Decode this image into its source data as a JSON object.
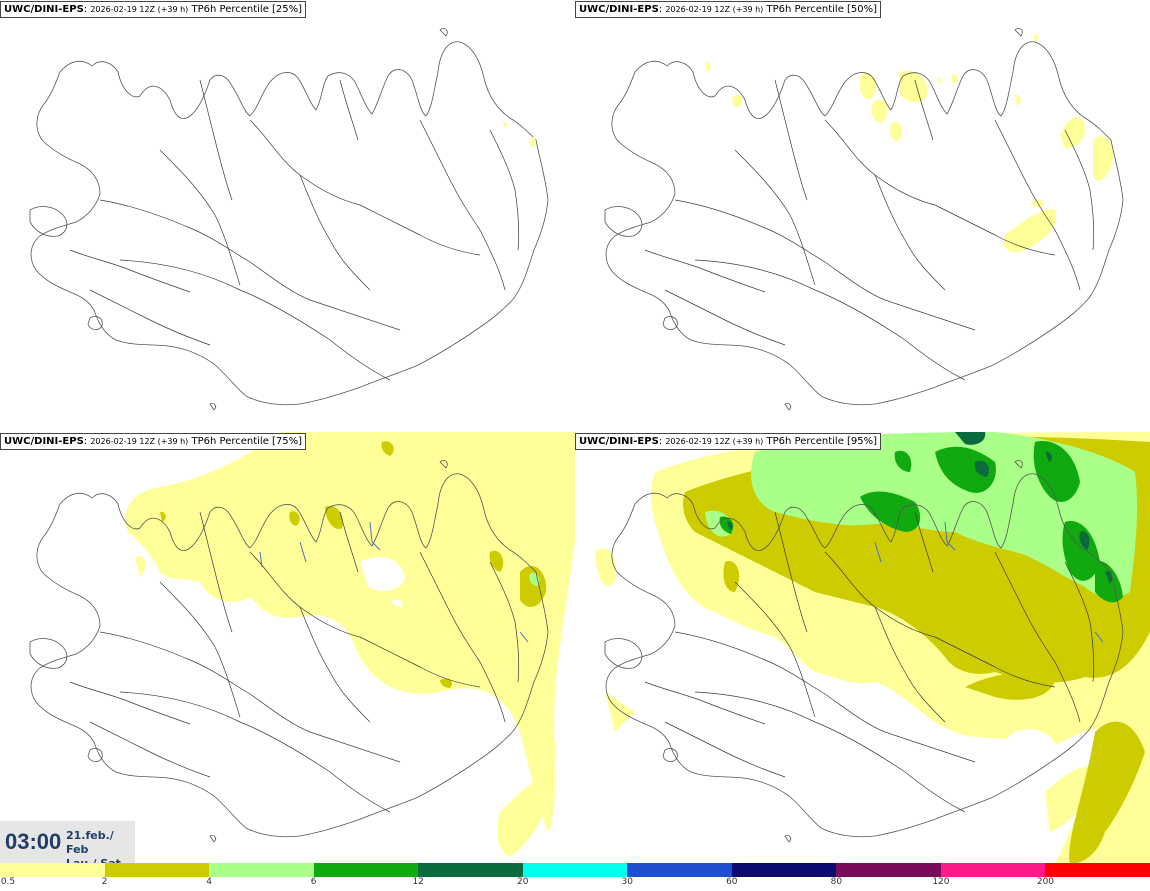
{
  "panels": [
    {
      "model": "UWC/DINI-EPS",
      "run": "2026-02-19 12Z (+39 h)",
      "field": "TP6h Percentile [25%]",
      "percentile": 25
    },
    {
      "model": "UWC/DINI-EPS",
      "run": "2026-02-19 12Z (+39 h)",
      "field": "TP6h Percentile [50%]",
      "percentile": 50
    },
    {
      "model": "UWC/DINI-EPS",
      "run": "2026-02-19 12Z (+39 h)",
      "field": "TP6h Percentile [75%]",
      "percentile": 75
    },
    {
      "model": "UWC/DINI-EPS",
      "run": "2026-02-19 12Z (+39 h)",
      "field": "TP6h Percentile [95%]",
      "percentile": 95
    }
  ],
  "valid_time": {
    "clock": "03:00",
    "date_line": "21.feb./ Feb",
    "day_line": "Lau./ Sat"
  },
  "legend": {
    "ticks": [
      "0.5",
      "2",
      "4",
      "6",
      "12",
      "20",
      "30",
      "60",
      "80",
      "120",
      "200"
    ],
    "colors": [
      "#ffff99",
      "#cccc00",
      "#aaff88",
      "#10aa10",
      "#0b6b3f",
      "#00ffee",
      "#1e4fd0",
      "#0b0b70",
      "#7a0a5a",
      "#ff1a8c",
      "#ff0000"
    ]
  },
  "map_colors": {
    "land_outline": "#555555",
    "roads": "#3a3a3a",
    "rivers": "#4a6fd0"
  }
}
